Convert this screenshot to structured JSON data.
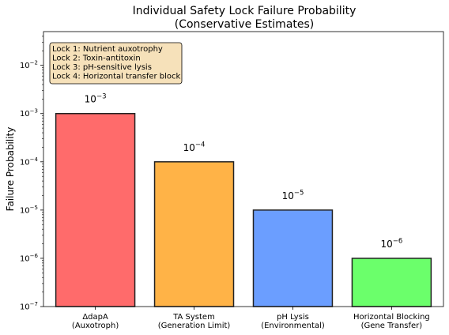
{
  "chart_data": {
    "type": "bar",
    "title": "Individual Safety Lock Failure Probability",
    "subtitle": "(Conservative Estimates)",
    "xlabel": "",
    "ylabel": "Failure Probability",
    "yscale": "log",
    "ylim": [
      1e-07,
      0.05
    ],
    "categories": [
      [
        "ΔdapA",
        "(Auxotroph)"
      ],
      [
        "TA System",
        "(Generation Limit)"
      ],
      [
        "pH Lysis",
        "(Environmental)"
      ],
      [
        "Horizontal Blocking",
        "(Gene Transfer)"
      ]
    ],
    "values": [
      0.001,
      0.0001,
      1e-05,
      1e-06
    ],
    "bar_labels": [
      {
        "base": "10",
        "exp": "−3"
      },
      {
        "base": "10",
        "exp": "−4"
      },
      {
        "base": "10",
        "exp": "−5"
      },
      {
        "base": "10",
        "exp": "−6"
      }
    ],
    "colors": [
      "#ff6b6b",
      "#ffb347",
      "#6b9eff",
      "#6bff6b"
    ],
    "edge_color": "#222222",
    "y_ticks": [
      {
        "value": 1e-07,
        "base": "10",
        "exp": "−7"
      },
      {
        "value": 1e-06,
        "base": "10",
        "exp": "−6"
      },
      {
        "value": 1e-05,
        "base": "10",
        "exp": "−5"
      },
      {
        "value": 0.0001,
        "base": "10",
        "exp": "−4"
      },
      {
        "value": 0.001,
        "base": "10",
        "exp": "−3"
      },
      {
        "value": 0.01,
        "base": "10",
        "exp": "−2"
      }
    ],
    "legend_box": {
      "placement": "top-left",
      "lines": [
        "Lock 1: Nutrient auxotrophy",
        "Lock 2: Toxin-antitoxin",
        "Lock 3: pH-sensitive lysis",
        "Lock 4: Horizontal transfer block"
      ],
      "background": "#f5deb3"
    }
  }
}
